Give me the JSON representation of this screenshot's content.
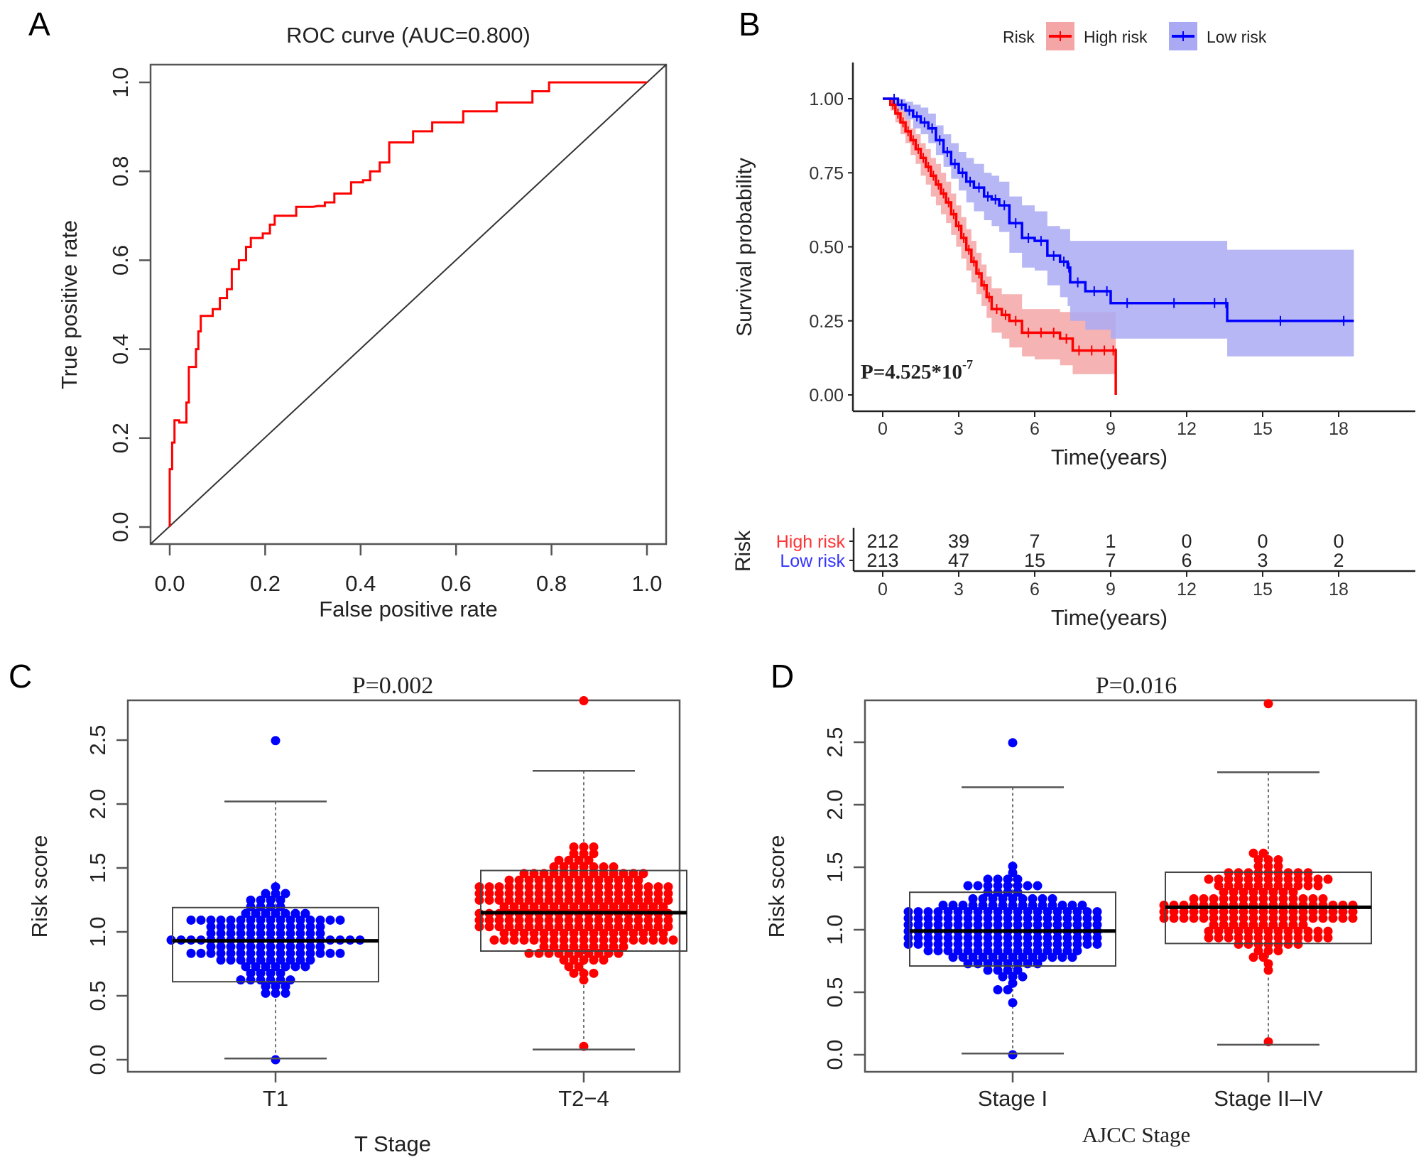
{
  "panels": {
    "A": {
      "letter": "A"
    },
    "B": {
      "letter": "B"
    },
    "C": {
      "letter": "C"
    },
    "D": {
      "letter": "D"
    }
  },
  "colors": {
    "high": "#ff0000",
    "low": "#0000ff",
    "high_band": "#f4a6a6",
    "low_band": "#aaaaf4",
    "axis": "#555555",
    "diagonal": "#333333"
  },
  "chart_data": [
    {
      "id": "A",
      "type": "line",
      "title": "ROC curve (AUC=0.800)",
      "xlabel": "False positive rate",
      "ylabel": "True positive rate",
      "xlim": [
        0,
        1
      ],
      "ylim": [
        0,
        1
      ],
      "xticks": [
        "0.0",
        "0.2",
        "0.4",
        "0.6",
        "0.8",
        "1.0"
      ],
      "yticks": [
        "0.0",
        "0.2",
        "0.4",
        "0.6",
        "0.8",
        "1.0"
      ],
      "auc": 0.8,
      "series": [
        {
          "name": "ROC",
          "color": "red",
          "step": true,
          "x": [
            0,
            0,
            0.005,
            0.005,
            0.01,
            0.01,
            0.02,
            0.02,
            0.035,
            0.035,
            0.04,
            0.04,
            0.055,
            0.055,
            0.06,
            0.06,
            0.065,
            0.065,
            0.09,
            0.09,
            0.105,
            0.105,
            0.12,
            0.12,
            0.13,
            0.13,
            0.145,
            0.145,
            0.16,
            0.16,
            0.17,
            0.17,
            0.195,
            0.195,
            0.21,
            0.21,
            0.22,
            0.22,
            0.265,
            0.265,
            0.3,
            0.31,
            0.325,
            0.325,
            0.345,
            0.345,
            0.38,
            0.38,
            0.405,
            0.405,
            0.42,
            0.42,
            0.44,
            0.44,
            0.46,
            0.46,
            0.51,
            0.51,
            0.55,
            0.55,
            0.615,
            0.615,
            0.685,
            0.685,
            0.75,
            0.75,
            0.76,
            0.76,
            0.795,
            0.795,
            0.85,
            1.0
          ],
          "y": [
            0,
            0.13,
            0.13,
            0.19,
            0.19,
            0.24,
            0.24,
            0.235,
            0.235,
            0.28,
            0.28,
            0.36,
            0.36,
            0.4,
            0.4,
            0.44,
            0.44,
            0.475,
            0.475,
            0.49,
            0.49,
            0.515,
            0.515,
            0.535,
            0.535,
            0.58,
            0.58,
            0.6,
            0.6,
            0.63,
            0.63,
            0.65,
            0.65,
            0.66,
            0.66,
            0.68,
            0.68,
            0.7,
            0.7,
            0.72,
            0.72,
            0.722,
            0.722,
            0.73,
            0.73,
            0.75,
            0.75,
            0.775,
            0.775,
            0.78,
            0.78,
            0.8,
            0.8,
            0.82,
            0.82,
            0.865,
            0.865,
            0.89,
            0.89,
            0.91,
            0.91,
            0.935,
            0.935,
            0.955,
            0.955,
            0.955,
            0.955,
            0.98,
            0.98,
            1.0,
            1.0,
            1.0
          ]
        },
        {
          "name": "Reference",
          "color": "black",
          "x": [
            0,
            1
          ],
          "y": [
            0,
            1
          ]
        }
      ]
    },
    {
      "id": "B",
      "type": "line",
      "title": "",
      "xlabel": "Time(years)",
      "ylabel": "Survival probability",
      "xlim": [
        0,
        20
      ],
      "ylim": [
        0,
        1
      ],
      "xticks": [
        "0",
        "3",
        "6",
        "9",
        "12",
        "15",
        "18"
      ],
      "yticks": [
        "0.00",
        "0.25",
        "0.50",
        "0.75",
        "1.00"
      ],
      "legend": {
        "title": "Risk",
        "position": "top",
        "entries": [
          "High risk",
          "Low risk"
        ]
      },
      "annotation": {
        "text": "P=4.525*10",
        "superscript": "-7"
      },
      "series": [
        {
          "name": "High risk",
          "color": "red",
          "x": [
            0,
            0.3,
            0.5,
            0.7,
            0.9,
            1.1,
            1.3,
            1.5,
            1.7,
            1.9,
            2.1,
            2.3,
            2.5,
            2.7,
            2.9,
            3.1,
            3.3,
            3.5,
            3.7,
            3.9,
            4.1,
            4.3,
            4.7,
            5.0,
            5.5,
            6.0,
            6.5,
            7.0,
            7.5,
            8.0,
            8.5,
            9.0,
            9.2,
            9.2
          ],
          "y": [
            1,
            0.98,
            0.95,
            0.92,
            0.89,
            0.86,
            0.83,
            0.8,
            0.77,
            0.74,
            0.71,
            0.68,
            0.65,
            0.61,
            0.57,
            0.53,
            0.49,
            0.45,
            0.41,
            0.37,
            0.33,
            0.29,
            0.27,
            0.25,
            0.21,
            0.21,
            0.21,
            0.19,
            0.15,
            0.15,
            0.15,
            0.15,
            0.14,
            0
          ],
          "lower": [
            1,
            0.96,
            0.92,
            0.88,
            0.85,
            0.81,
            0.78,
            0.74,
            0.71,
            0.67,
            0.64,
            0.61,
            0.58,
            0.54,
            0.5,
            0.46,
            0.42,
            0.38,
            0.34,
            0.3,
            0.26,
            0.21,
            0.19,
            0.16,
            0.13,
            0.12,
            0.12,
            0.1,
            0.07,
            0.07,
            0.07,
            0.07,
            0.07,
            0.07
          ],
          "upper": [
            1,
            1.0,
            0.98,
            0.96,
            0.93,
            0.9,
            0.88,
            0.85,
            0.83,
            0.8,
            0.78,
            0.75,
            0.72,
            0.68,
            0.64,
            0.6,
            0.56,
            0.52,
            0.48,
            0.44,
            0.4,
            0.36,
            0.34,
            0.34,
            0.29,
            0.29,
            0.29,
            0.28,
            0.28,
            0.28,
            0.28,
            0.28,
            0.28,
            0.28
          ]
        },
        {
          "name": "Low risk",
          "color": "blue",
          "x": [
            0,
            0.3,
            0.6,
            0.9,
            1.2,
            1.5,
            1.8,
            2.1,
            2.4,
            2.7,
            3.0,
            3.3,
            3.6,
            4.0,
            4.3,
            4.6,
            5.0,
            5.5,
            6.0,
            6.5,
            7.0,
            7.3,
            7.4,
            8.0,
            8.7,
            9.0,
            10.3,
            12.7,
            13.5,
            13.6,
            17.8,
            18.6
          ],
          "y": [
            1,
            1.0,
            0.98,
            0.96,
            0.94,
            0.92,
            0.9,
            0.86,
            0.82,
            0.78,
            0.75,
            0.72,
            0.7,
            0.67,
            0.66,
            0.64,
            0.58,
            0.53,
            0.52,
            0.47,
            0.45,
            0.43,
            0.38,
            0.35,
            0.35,
            0.31,
            0.31,
            0.31,
            0.31,
            0.25,
            0.25,
            0.25
          ],
          "lower": [
            1,
            0.98,
            0.96,
            0.93,
            0.9,
            0.88,
            0.85,
            0.81,
            0.77,
            0.73,
            0.69,
            0.65,
            0.62,
            0.59,
            0.57,
            0.55,
            0.48,
            0.43,
            0.42,
            0.37,
            0.33,
            0.3,
            0.25,
            0.22,
            0.22,
            0.19,
            0.19,
            0.19,
            0.19,
            0.13,
            0.13,
            0.13
          ],
          "upper": [
            1,
            1.0,
            1.0,
            0.99,
            0.98,
            0.97,
            0.95,
            0.91,
            0.88,
            0.85,
            0.82,
            0.8,
            0.78,
            0.75,
            0.74,
            0.72,
            0.67,
            0.64,
            0.62,
            0.57,
            0.56,
            0.56,
            0.52,
            0.52,
            0.52,
            0.52,
            0.52,
            0.52,
            0.52,
            0.49,
            0.49,
            0.49
          ]
        }
      ]
    },
    {
      "id": "B-risk-table",
      "type": "table",
      "title": "Risk",
      "xlabel": "Time(years)",
      "columns": [
        "0",
        "3",
        "6",
        "9",
        "12",
        "15",
        "18"
      ],
      "rows": [
        {
          "label": "High risk",
          "color": "red",
          "values": [
            212,
            39,
            7,
            1,
            0,
            0,
            0
          ]
        },
        {
          "label": "Low risk",
          "color": "blue",
          "values": [
            213,
            47,
            15,
            7,
            6,
            3,
            2
          ]
        }
      ]
    },
    {
      "id": "C",
      "type": "scatter",
      "subtype": "boxplot-beeswarm",
      "title": "P=0.002",
      "xlabel": "T Stage",
      "ylabel": "Risk score",
      "ylim": [
        0,
        2.8
      ],
      "yticks": [
        "0.0",
        "0.5",
        "1.0",
        "1.5",
        "2.0",
        "2.5"
      ],
      "categories": [
        "T1",
        "T2−4"
      ],
      "groups": [
        {
          "name": "T1",
          "color": "blue",
          "n": 140,
          "whisker_low": 0.01,
          "q1": 0.61,
          "median": 0.93,
          "q3": 1.19,
          "whisker_high": 2.02,
          "min": 0.0,
          "max": 2.48,
          "spread": 0.9
        },
        {
          "name": "T2−4",
          "color": "red",
          "n": 290,
          "whisker_low": 0.08,
          "q1": 0.85,
          "median": 1.15,
          "q3": 1.48,
          "whisker_high": 2.26,
          "min": 0.08,
          "max": 2.8,
          "spread": 1.0
        }
      ]
    },
    {
      "id": "D",
      "type": "scatter",
      "subtype": "boxplot-beeswarm",
      "title": "P=0.016",
      "xlabel": "AJCC Stage",
      "ylabel": "Risk score",
      "ylim": [
        0,
        2.8
      ],
      "yticks": [
        "0.0",
        "0.5",
        "1.0",
        "1.5",
        "2.0",
        "2.5"
      ],
      "categories": [
        "Stage I",
        "Stage II–IV"
      ],
      "groups": [
        {
          "name": "Stage I",
          "color": "blue",
          "n": 250,
          "whisker_low": 0.01,
          "q1": 0.71,
          "median": 0.99,
          "q3": 1.3,
          "whisker_high": 2.14,
          "min": 0.0,
          "max": 2.5,
          "spread": 1.0
        },
        {
          "name": "Stage II–IV",
          "color": "red",
          "n": 180,
          "whisker_low": 0.08,
          "q1": 0.89,
          "median": 1.18,
          "q3": 1.46,
          "whisker_high": 2.26,
          "min": 0.08,
          "max": 2.8,
          "spread": 0.85
        }
      ]
    }
  ]
}
